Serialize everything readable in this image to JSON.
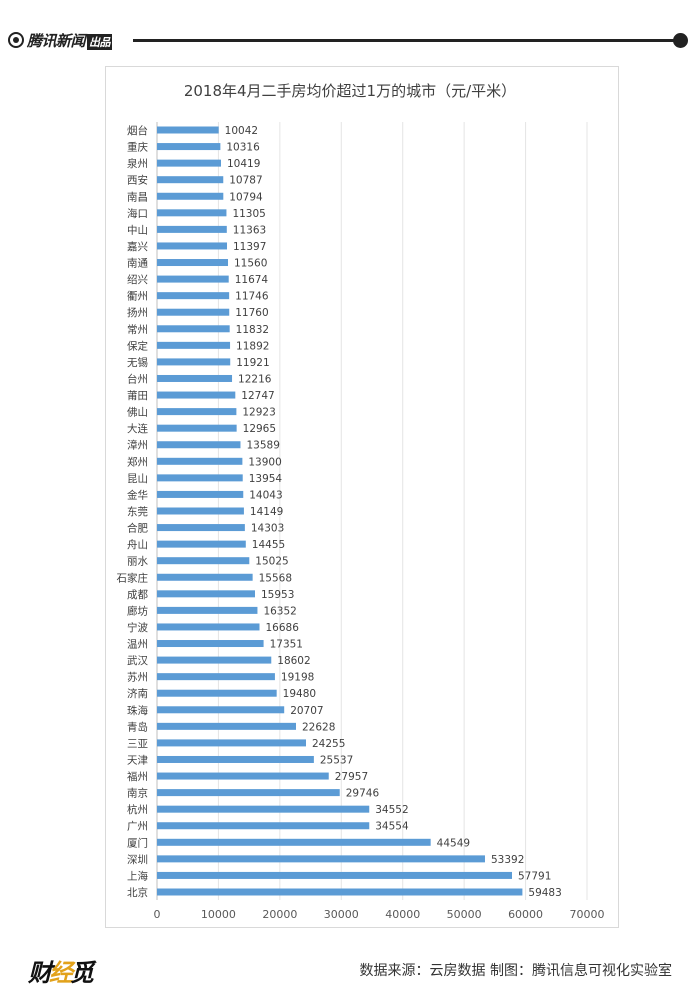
{
  "header": {
    "brand": "腾讯新闻",
    "brand_tag": "出品"
  },
  "chart_data": {
    "type": "bar",
    "orientation": "horizontal",
    "title": "2018年4月二手房均价超过1万的城市（元/平米）",
    "xlabel": "",
    "ylabel": "",
    "xlim": [
      0,
      70000
    ],
    "x_ticks": [
      0,
      10000,
      20000,
      30000,
      40000,
      50000,
      60000,
      70000
    ],
    "grid": true,
    "bar_color": "#5b9bd5",
    "categories": [
      "烟台",
      "重庆",
      "泉州",
      "西安",
      "南昌",
      "海口",
      "中山",
      "嘉兴",
      "南通",
      "绍兴",
      "衢州",
      "扬州",
      "常州",
      "保定",
      "无锡",
      "台州",
      "莆田",
      "佛山",
      "大连",
      "漳州",
      "郑州",
      "昆山",
      "金华",
      "东莞",
      "合肥",
      "舟山",
      "丽水",
      "石家庄",
      "成都",
      "廊坊",
      "宁波",
      "温州",
      "武汉",
      "苏州",
      "济南",
      "珠海",
      "青岛",
      "三亚",
      "天津",
      "福州",
      "南京",
      "杭州",
      "广州",
      "厦门",
      "深圳",
      "上海",
      "北京"
    ],
    "values": [
      10042,
      10316,
      10419,
      10787,
      10794,
      11305,
      11363,
      11397,
      11560,
      11674,
      11746,
      11760,
      11832,
      11892,
      11921,
      12216,
      12747,
      12923,
      12965,
      13589,
      13900,
      13954,
      14043,
      14149,
      14303,
      14455,
      15025,
      15568,
      15953,
      16352,
      16686,
      17351,
      18602,
      19198,
      19480,
      20707,
      22628,
      24255,
      25537,
      27957,
      29746,
      34552,
      34554,
      44549,
      53392,
      57791,
      59483
    ]
  },
  "footer": {
    "logo_main": "财",
    "logo_accent": "经",
    "logo_rest": "觅",
    "source": "数据来源：云房数据  制图：腾讯信息可视化实验室"
  }
}
